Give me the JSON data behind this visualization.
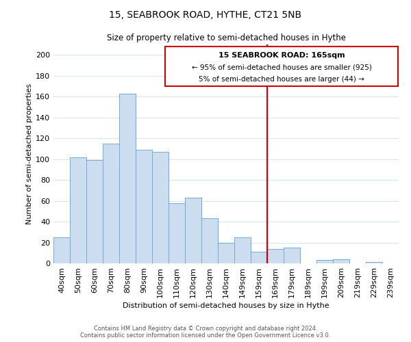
{
  "title": "15, SEABROOK ROAD, HYTHE, CT21 5NB",
  "subtitle": "Size of property relative to semi-detached houses in Hythe",
  "xlabel": "Distribution of semi-detached houses by size in Hythe",
  "ylabel": "Number of semi-detached properties",
  "bar_labels": [
    "40sqm",
    "50sqm",
    "60sqm",
    "70sqm",
    "80sqm",
    "90sqm",
    "100sqm",
    "110sqm",
    "120sqm",
    "130sqm",
    "140sqm",
    "149sqm",
    "159sqm",
    "169sqm",
    "179sqm",
    "189sqm",
    "199sqm",
    "209sqm",
    "219sqm",
    "229sqm",
    "239sqm"
  ],
  "bar_values": [
    25,
    102,
    99,
    115,
    163,
    109,
    107,
    58,
    63,
    43,
    20,
    25,
    11,
    14,
    15,
    0,
    3,
    4,
    0,
    1,
    0
  ],
  "bar_color": "#ccddf0",
  "bar_edge_color": "#7aaad0",
  "grid_color": "#d8e4f0",
  "vline_x": 13.0,
  "vline_color": "#cc0000",
  "annotation_title": "15 SEABROOK ROAD: 165sqm",
  "annotation_line1": "← 95% of semi-detached houses are smaller (925)",
  "annotation_line2": "5% of semi-detached houses are larger (44) →",
  "annotation_box_facecolor": "#ffffff",
  "annotation_box_edgecolor": "#cc0000",
  "ylim": [
    0,
    210
  ],
  "yticks": [
    0,
    20,
    40,
    60,
    80,
    100,
    120,
    140,
    160,
    180,
    200
  ],
  "footer_line1": "Contains HM Land Registry data © Crown copyright and database right 2024.",
  "footer_line2": "Contains public sector information licensed under the Open Government Licence v3.0."
}
